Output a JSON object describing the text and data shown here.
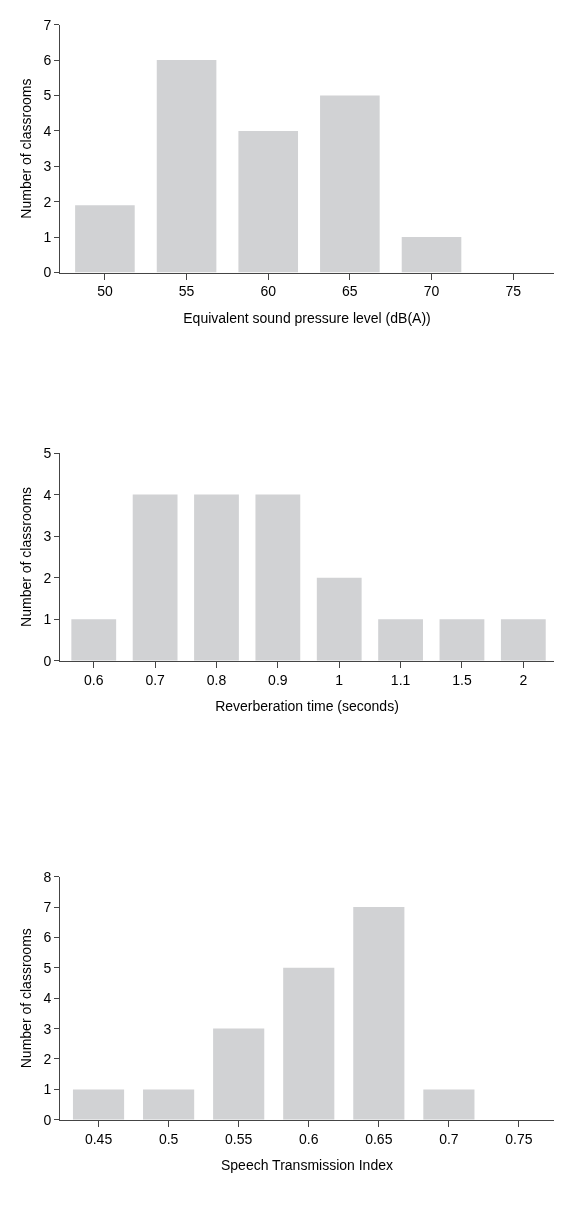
{
  "chart_data": [
    {
      "type": "bar",
      "xlabel": "Equivalent sound pressure level (dB(A))",
      "ylabel": "Number of classrooms",
      "categories": [
        "50",
        "55",
        "60",
        "65",
        "70",
        "75"
      ],
      "values": [
        1.9,
        6,
        4,
        5,
        1,
        0
      ],
      "color": "#d1d2d4",
      "ylim": [
        0,
        7
      ],
      "yticks": [
        0,
        1,
        2,
        3,
        4,
        5,
        6,
        7
      ]
    },
    {
      "type": "bar",
      "xlabel": "Reverberation time (seconds)",
      "ylabel": "Number of classrooms",
      "categories": [
        "0.6",
        "0.7",
        "0.8",
        "0.9",
        "1",
        "1.1",
        "1.5",
        "2"
      ],
      "values": [
        1,
        4,
        4,
        4,
        2,
        1,
        1,
        1
      ],
      "color": "#d1d2d4",
      "ylim": [
        0,
        5
      ],
      "yticks": [
        0,
        1,
        2,
        3,
        4,
        5
      ]
    },
    {
      "type": "bar",
      "xlabel": "Speech Transmission Index",
      "ylabel": "Number of classrooms",
      "categories": [
        "0.45",
        "0.5",
        "0.55",
        "0.6",
        "0.65",
        "0.7",
        "0.75"
      ],
      "values": [
        1,
        1,
        3,
        5,
        7,
        1,
        0
      ],
      "color": "#d1d2d4",
      "ylim": [
        0,
        8
      ],
      "yticks": [
        0,
        1,
        2,
        3,
        4,
        5,
        6,
        7,
        8
      ]
    }
  ]
}
